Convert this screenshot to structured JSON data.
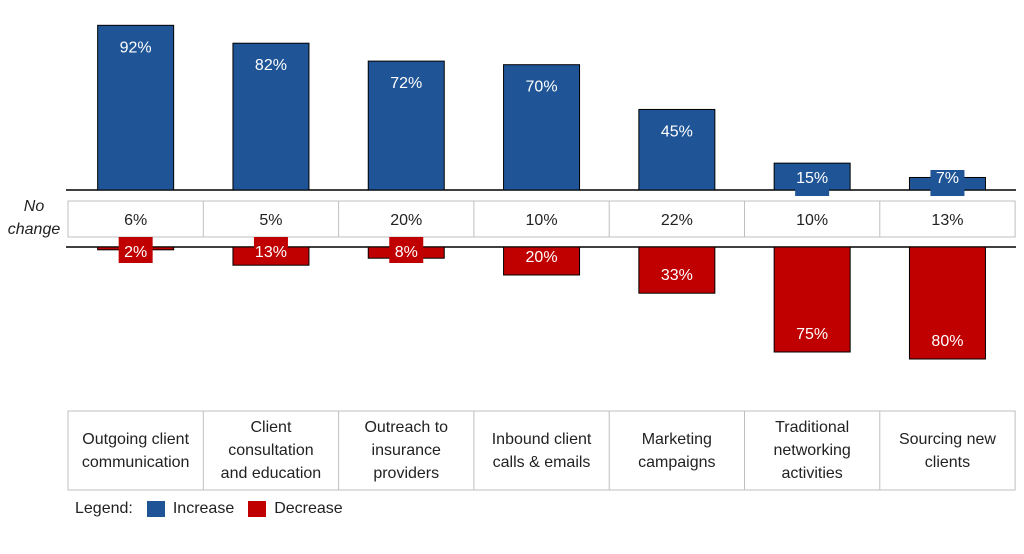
{
  "no_change_label": [
    "No",
    "change"
  ],
  "legend": {
    "title": "Legend:",
    "increase": "Increase",
    "decrease": "Decrease"
  },
  "colors": {
    "increase": "#1F5496",
    "decrease": "#C00000",
    "grid": "#BFBFBF"
  },
  "categories_display": [
    [
      "Outgoing client",
      "communication"
    ],
    [
      "Client",
      "consultation",
      "and education"
    ],
    [
      "Outreach to",
      "insurance",
      "providers"
    ],
    [
      "Inbound client",
      "calls & emails"
    ],
    [
      "Marketing",
      "campaigns"
    ],
    [
      "Traditional",
      "networking",
      "activities"
    ],
    [
      "Sourcing new",
      "clients"
    ]
  ],
  "chart_data": {
    "type": "bar",
    "categories": [
      "Outgoing client communication",
      "Client consultation and education",
      "Outreach to insurance providers",
      "Inbound client calls & emails",
      "Marketing campaigns",
      "Traditional networking activities",
      "Sourcing new clients"
    ],
    "series": [
      {
        "name": "Increase",
        "values": [
          92,
          82,
          72,
          70,
          45,
          15,
          7
        ],
        "labels": [
          "92%",
          "82%",
          "72%",
          "70%",
          "45%",
          "15%",
          "7%"
        ]
      },
      {
        "name": "Decrease",
        "values": [
          2,
          13,
          8,
          20,
          33,
          75,
          80
        ],
        "labels": [
          "2%",
          "13%",
          "8%",
          "20%",
          "33%",
          "75%",
          "80%"
        ]
      }
    ],
    "no_change": {
      "values": [
        6,
        5,
        20,
        10,
        22,
        10,
        13
      ],
      "labels": [
        "6%",
        "5%",
        "20%",
        "10%",
        "22%",
        "10%",
        "13%"
      ]
    },
    "ylim": [
      0,
      100
    ]
  }
}
